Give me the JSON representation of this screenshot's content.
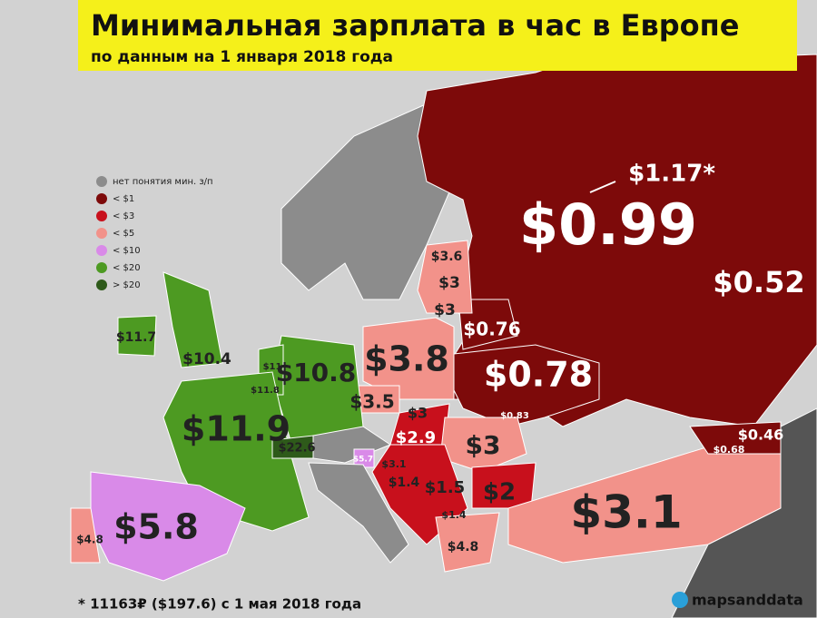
{
  "header": {
    "title": "Минимальная зарплата в час в Европе",
    "subtitle": "по данным на 1 января 2018 года"
  },
  "legend": [
    {
      "label": "нет понятия мин. з/п",
      "color": "#8c8c8c"
    },
    {
      "label": "< $1",
      "color": "#7d0a0a"
    },
    {
      "label": "< $3",
      "color": "#c8101c"
    },
    {
      "label": "< $5",
      "color": "#f2928a"
    },
    {
      "label": "< $10",
      "color": "#d98ae8"
    },
    {
      "label": "< $20",
      "color": "#4d9a22"
    },
    {
      "label": "> $20",
      "color": "#2e5a1a"
    }
  ],
  "labels": [
    "$1.17*",
    "$0.99",
    "$0.52",
    "$0.76",
    "$0.78",
    "$0.83",
    "$0.46",
    "$0.68",
    "$3.6",
    "$3",
    "$3",
    "$3.8",
    "$3.5",
    "$3",
    "$2.9",
    "$3",
    "$2",
    "$3.1",
    "$1.4",
    "$1.5",
    "$1.4",
    "$4.8",
    "$5.7",
    "$3.1",
    "$22.6",
    "$11.9",
    "$10.8",
    "$10.4",
    "$11.7",
    "$11",
    "$11.8",
    "$5.8",
    "$4.8"
  ],
  "footnote": "* 11163₽ ($197.6) с 1 мая 2018 года",
  "brand": "mapsanddata"
}
